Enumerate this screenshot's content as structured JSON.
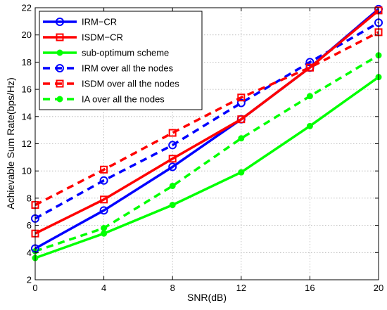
{
  "chart_data": {
    "type": "line",
    "xlabel": "SNR(dB)",
    "ylabel": "Achievable Sum Rate(bps/Hz)",
    "xlim": [
      0,
      20
    ],
    "ylim": [
      2,
      22
    ],
    "xticks": [
      0,
      4,
      8,
      12,
      16,
      20
    ],
    "yticks": [
      2,
      4,
      6,
      8,
      10,
      12,
      14,
      16,
      18,
      20,
      22
    ],
    "grid": true,
    "legend_position": "top-left",
    "x": [
      0,
      4,
      8,
      12,
      16,
      20
    ],
    "series": [
      {
        "name": "IRM−CR",
        "color": "#0000ff",
        "dash": "solid",
        "marker": "circle",
        "values": [
          4.3,
          7.1,
          10.3,
          13.8,
          17.6,
          21.9
        ]
      },
      {
        "name": "ISDM−CR",
        "color": "#ff0000",
        "dash": "solid",
        "marker": "square",
        "values": [
          5.4,
          7.9,
          10.9,
          13.8,
          17.6,
          21.8
        ]
      },
      {
        "name": "sub-optimum scheme",
        "color": "#00ff00",
        "dash": "solid",
        "marker": "dot",
        "values": [
          3.6,
          5.4,
          7.5,
          9.9,
          13.3,
          16.9
        ]
      },
      {
        "name": "IRM over all the nodes",
        "color": "#0000ff",
        "dash": "dashed",
        "marker": "circle",
        "values": [
          6.5,
          9.3,
          11.9,
          15.0,
          18.0,
          20.9
        ]
      },
      {
        "name": "ISDM over all the nodes",
        "color": "#ff0000",
        "dash": "dashed",
        "marker": "square",
        "values": [
          7.5,
          10.1,
          12.8,
          15.4,
          17.6,
          20.2
        ]
      },
      {
        "name": "IA over all the nodes",
        "color": "#00ff00",
        "dash": "dashed",
        "marker": "dot",
        "values": [
          4.1,
          5.8,
          8.9,
          12.4,
          15.5,
          18.5
        ]
      }
    ]
  }
}
